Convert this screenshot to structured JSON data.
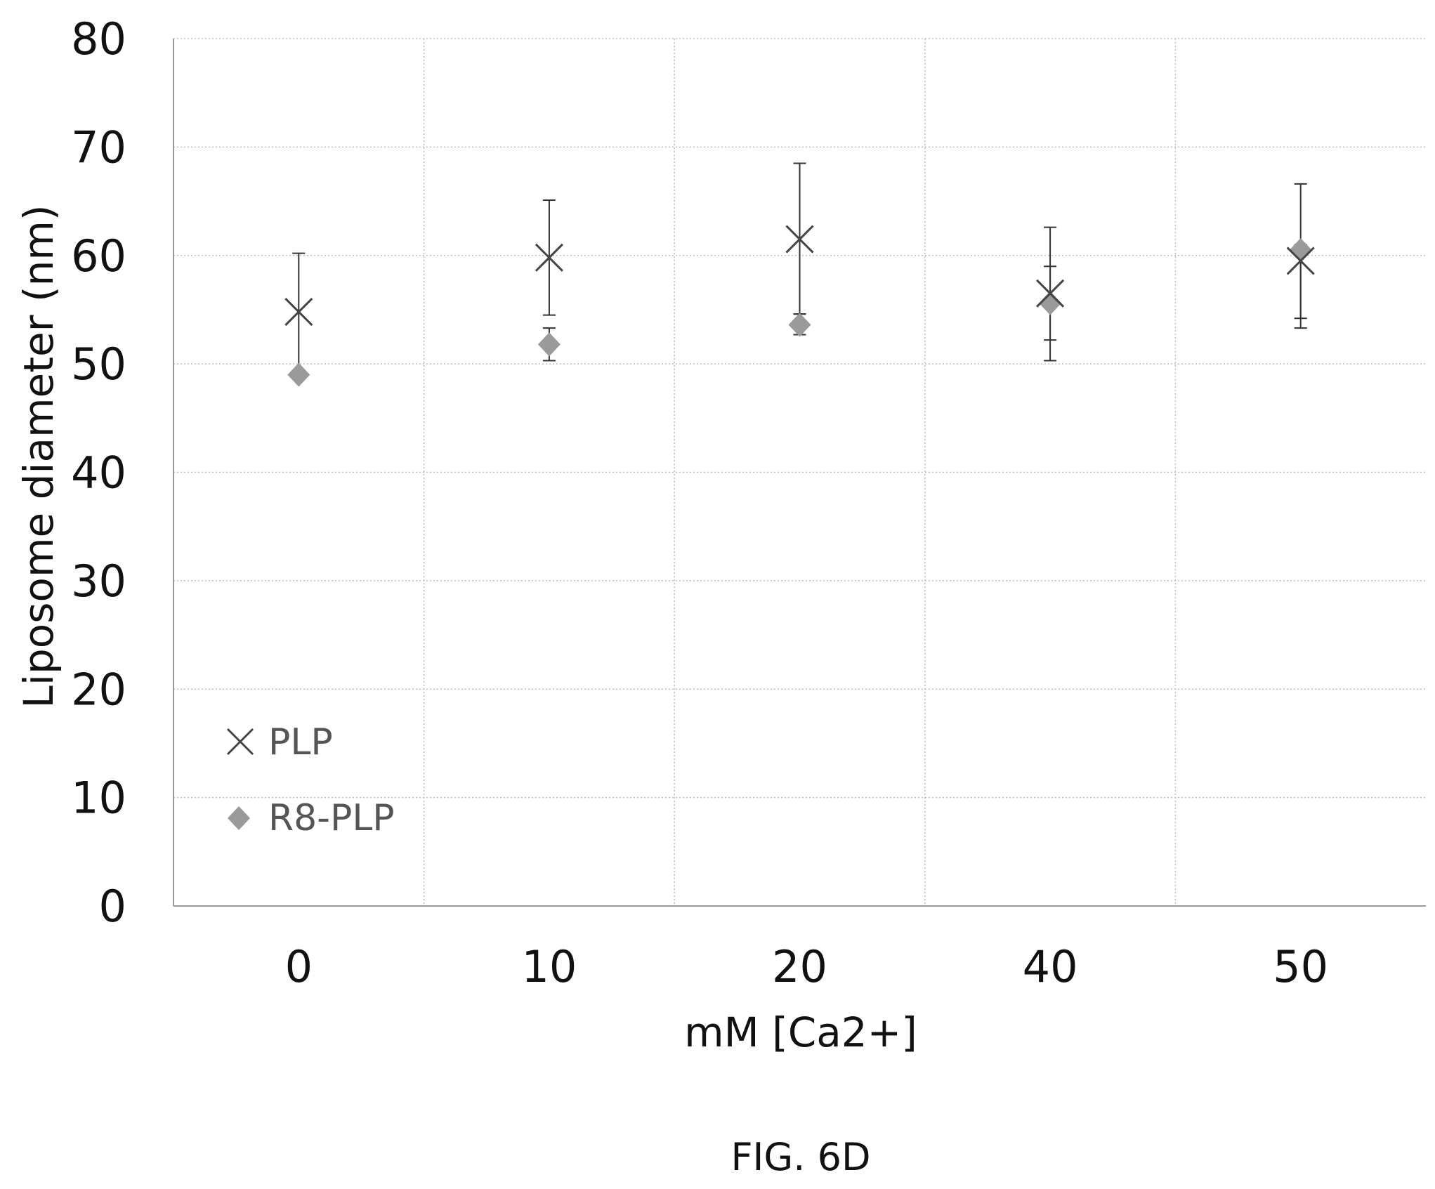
{
  "chart_data": {
    "type": "scatter",
    "title": "",
    "xlabel": "mM [Ca2+]",
    "ylabel": "Liposome diameter (nm)",
    "categories": [
      "0",
      "10",
      "20",
      "40",
      "50"
    ],
    "ylim": [
      0,
      80
    ],
    "yticks": [
      0,
      10,
      20,
      30,
      40,
      50,
      60,
      70,
      80
    ],
    "grid": true,
    "legend_position": "bottom-left",
    "series": [
      {
        "name": "PLP",
        "marker": "x",
        "color": "#444444",
        "values": [
          54.8,
          59.8,
          61.5,
          56.5,
          59.5
        ],
        "err_low": [
          49.4,
          54.5,
          54.6,
          50.3,
          53.3
        ],
        "err_high": [
          60.2,
          65.1,
          68.5,
          62.6,
          66.6
        ]
      },
      {
        "name": "R8-PLP",
        "marker": "diamond",
        "color": "#9a9a9a",
        "values": [
          49.0,
          51.8,
          53.6,
          55.6,
          60.5
        ],
        "err_low": [
          48.6,
          50.3,
          52.7,
          52.2,
          54.2
        ],
        "err_high": [
          49.4,
          53.3,
          54.6,
          59.0,
          61.0
        ]
      }
    ]
  },
  "caption": "FIG.  6D"
}
